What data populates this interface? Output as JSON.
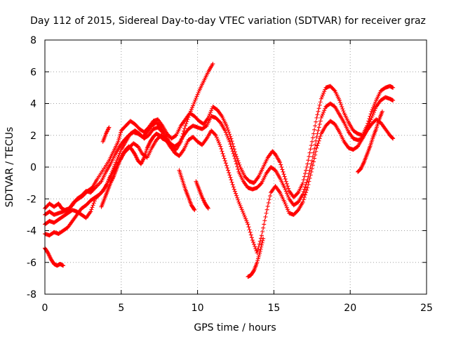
{
  "chart_data": {
    "type": "scatter",
    "title": "Day 112 of 2015, Sidereal Day-to-day VTEC variation (SDTVAR) for receiver graz",
    "xlabel": "GPS time / hours",
    "ylabel": "SDTVAR / TECUs",
    "xlim": [
      0,
      25
    ],
    "ylim": [
      -8,
      8
    ],
    "xticks": [
      "0",
      "5",
      "10",
      "15",
      "20",
      "25"
    ],
    "yticks": [
      "-8",
      "-6",
      "-4",
      "-2",
      "0",
      "2",
      "4",
      "6",
      "8"
    ],
    "grid": true,
    "marker": "+",
    "color": "#ff0000",
    "series": [
      {
        "x": [
          0.0,
          0.3,
          0.6,
          0.9,
          1.1,
          1.3,
          1.6,
          1.9,
          2.2,
          2.5,
          2.8,
          3.1,
          3.4,
          3.8,
          4.2,
          4.5,
          4.8,
          5.0,
          5.3,
          5.6,
          5.9,
          6.2,
          6.5,
          6.8,
          7.1,
          7.4,
          7.7,
          8.0,
          8.3,
          8.6,
          8.9,
          9.2,
          9.5,
          9.8,
          10.1,
          10.4,
          10.7,
          11.0,
          11.3,
          11.6,
          11.9,
          12.2,
          12.5,
          12.8,
          13.1,
          13.4,
          13.7,
          14.0,
          14.3,
          14.6,
          14.9,
          15.1,
          15.4,
          15.7,
          16.0,
          16.3,
          16.6,
          16.9,
          17.2,
          17.5,
          17.8,
          18.1,
          18.4,
          18.7,
          19.0,
          19.3,
          19.6,
          19.9,
          20.2,
          20.5,
          20.8,
          21.1,
          21.4,
          21.7,
          22.0,
          22.3,
          22.6,
          22.8
        ],
        "y": [
          -2.6,
          -2.3,
          -2.5,
          -2.3,
          -2.6,
          -2.7,
          -2.6,
          -2.2,
          -2.0,
          -1.8,
          -1.5,
          -1.3,
          -0.8,
          -0.2,
          0.4,
          1.0,
          1.6,
          2.3,
          2.6,
          2.9,
          2.7,
          2.4,
          2.2,
          2.5,
          2.9,
          3.0,
          2.6,
          2.1,
          1.8,
          2.0,
          2.6,
          3.0,
          3.4,
          3.2,
          2.9,
          2.7,
          3.1,
          3.8,
          3.6,
          3.2,
          2.6,
          1.8,
          0.8,
          0.0,
          -0.6,
          -0.9,
          -1.0,
          -0.6,
          0.0,
          0.6,
          1.0,
          0.8,
          0.3,
          -0.6,
          -1.5,
          -1.9,
          -1.6,
          -1.0,
          0.2,
          1.6,
          3.1,
          4.3,
          5.0,
          5.1,
          4.8,
          4.2,
          3.4,
          2.8,
          2.3,
          2.1,
          2.0,
          2.6,
          3.5,
          4.2,
          4.8,
          5.0,
          5.1,
          5.0
        ]
      },
      {
        "x": [
          0.0,
          0.3,
          0.6,
          0.9,
          1.2,
          1.5,
          1.8,
          2.1,
          2.4,
          2.7,
          3.0,
          3.3,
          3.7,
          4.0,
          4.3,
          4.6,
          4.9,
          5.2,
          5.5,
          5.8,
          6.1,
          6.4,
          6.7,
          7.0,
          7.3,
          7.6,
          7.9,
          8.2,
          8.5,
          8.8,
          9.1,
          9.4,
          9.7,
          10.0,
          10.3,
          10.6,
          10.9,
          11.2,
          11.5,
          11.8,
          12.1,
          12.4,
          12.7,
          13.0,
          13.3,
          13.6,
          13.9,
          14.2,
          14.5,
          14.8,
          15.1,
          15.4,
          15.7,
          16.0,
          16.3,
          16.6,
          16.9,
          17.2,
          17.5,
          17.8,
          18.1,
          18.4,
          18.7,
          19.0,
          19.3,
          19.6,
          19.9,
          20.2,
          20.5,
          20.8,
          21.1,
          21.4,
          21.7,
          22.0,
          22.3,
          22.6,
          22.8
        ],
        "y": [
          -3.0,
          -2.8,
          -3.0,
          -2.9,
          -2.8,
          -2.7,
          -2.4,
          -2.0,
          -1.8,
          -1.5,
          -1.6,
          -1.3,
          -0.9,
          -0.3,
          0.2,
          0.8,
          1.3,
          1.7,
          2.0,
          2.2,
          2.1,
          1.9,
          2.2,
          2.6,
          2.8,
          2.5,
          2.0,
          1.5,
          1.3,
          1.5,
          2.0,
          2.4,
          2.6,
          2.5,
          2.4,
          2.6,
          3.2,
          3.1,
          2.8,
          2.3,
          1.6,
          0.7,
          -0.3,
          -0.9,
          -1.3,
          -1.4,
          -1.3,
          -1.0,
          -0.4,
          0.0,
          -0.2,
          -0.7,
          -1.3,
          -2.0,
          -2.4,
          -2.2,
          -1.7,
          -0.8,
          0.4,
          1.9,
          3.1,
          3.8,
          4.0,
          3.8,
          3.3,
          2.8,
          2.2,
          1.8,
          1.7,
          1.8,
          2.4,
          3.1,
          3.8,
          4.2,
          4.4,
          4.3,
          4.2
        ]
      },
      {
        "x": [
          0.0,
          0.3,
          0.6,
          0.9,
          1.2,
          1.5,
          1.8,
          2.1,
          2.4,
          2.7,
          3.0,
          3.3,
          3.7,
          4.0,
          4.3,
          4.6,
          4.9,
          5.2,
          5.5,
          5.8,
          6.1,
          6.4,
          6.7,
          7.0,
          7.3,
          7.6,
          7.9,
          8.2,
          8.5,
          8.8,
          9.1,
          9.4,
          9.7,
          10.0,
          10.3,
          10.6,
          10.9,
          11.2,
          11.5,
          11.8,
          12.1,
          12.4,
          12.7,
          13.0,
          13.3,
          13.6,
          13.9,
          14.2,
          14.5,
          14.8,
          15.1,
          15.4,
          15.7,
          16.0,
          16.3,
          16.6,
          16.9,
          17.2,
          17.5,
          17.8,
          18.1,
          18.4,
          18.7,
          19.0,
          19.3,
          19.6,
          19.9,
          20.2,
          20.5,
          20.8,
          21.1,
          21.4,
          21.7,
          22.0,
          22.3,
          22.6,
          22.8
        ],
        "y": [
          -3.6,
          -3.4,
          -3.5,
          -3.3,
          -3.1,
          -2.9,
          -2.7,
          -2.8,
          -3.0,
          -3.2,
          -2.8,
          -2.0,
          -1.6,
          -1.2,
          -0.6,
          -0.1,
          0.4,
          0.9,
          1.2,
          1.5,
          1.3,
          0.8,
          0.6,
          1.2,
          1.7,
          2.0,
          1.8,
          1.3,
          0.9,
          0.7,
          1.1,
          1.7,
          1.9,
          1.6,
          1.4,
          1.8,
          2.3,
          2.0,
          1.3,
          0.4,
          -0.5,
          -1.4,
          -2.2,
          -2.9,
          -3.6,
          -4.6,
          -5.4,
          -4.3,
          -2.9,
          -1.6,
          -1.2,
          -1.6,
          -2.2,
          -2.9,
          -3.0,
          -2.7,
          -2.2,
          -1.3,
          -0.1,
          1.2,
          2.1,
          2.6,
          2.9,
          2.7,
          2.2,
          1.6,
          1.2,
          1.1,
          1.3,
          1.8,
          2.3,
          2.7,
          3.0,
          2.8,
          2.4,
          2.0,
          1.8
        ]
      },
      {
        "x": [
          0.0,
          0.3,
          0.6,
          0.9,
          1.2,
          1.5,
          1.8,
          2.1,
          2.4,
          2.7,
          3.0,
          3.3,
          3.6,
          3.8,
          4.1,
          4.4,
          4.7,
          5.0,
          5.3,
          5.6,
          5.9,
          6.2,
          6.5,
          6.8,
          7.1,
          7.4,
          7.7,
          8.0,
          8.3,
          8.6,
          8.9,
          9.2,
          9.5,
          9.8,
          10.1,
          10.4,
          10.7,
          11.0
        ],
        "y": [
          -4.2,
          -4.3,
          -4.1,
          -4.2,
          -4.0,
          -3.8,
          -3.4,
          -3.0,
          -2.6,
          -2.4,
          -2.1,
          -1.9,
          -1.7,
          -1.5,
          -1.0,
          -0.3,
          0.4,
          1.1,
          1.6,
          2.1,
          2.3,
          2.1,
          1.8,
          2.0,
          2.4,
          2.5,
          2.2,
          1.6,
          1.2,
          1.1,
          1.6,
          2.6,
          3.4,
          4.1,
          4.8,
          5.4,
          6.0,
          6.5
        ]
      },
      {
        "x": [
          0.0,
          0.2,
          0.4,
          0.6,
          0.8,
          1.0,
          1.2
        ],
        "y": [
          -5.1,
          -5.4,
          -5.8,
          -6.1,
          -6.2,
          -6.1,
          -6.2
        ]
      },
      {
        "x": [
          3.7,
          3.9,
          4.1,
          4.3,
          4.5,
          4.7,
          4.9,
          5.1,
          5.3,
          5.5,
          5.7,
          5.9,
          6.1,
          6.3,
          6.5,
          6.7,
          6.9,
          7.1,
          7.3,
          7.5,
          7.7,
          7.9,
          8.1
        ],
        "y": [
          -2.5,
          -2.0,
          -1.5,
          -1.0,
          -0.6,
          -0.1,
          0.4,
          0.8,
          1.1,
          1.3,
          1.1,
          0.8,
          0.4,
          0.2,
          0.6,
          1.2,
          1.6,
          1.9,
          2.1,
          2.0,
          1.8,
          1.7,
          1.6
        ]
      },
      {
        "x": [
          3.8,
          4.0,
          4.2
        ],
        "y": [
          1.6,
          2.1,
          2.5
        ]
      },
      {
        "x": [
          8.8,
          9.0,
          9.2,
          9.4,
          9.6,
          9.8
        ],
        "y": [
          -0.2,
          -0.8,
          -1.4,
          -1.9,
          -2.4,
          -2.7
        ]
      },
      {
        "x": [
          9.9,
          10.1,
          10.3,
          10.5,
          10.7
        ],
        "y": [
          -0.9,
          -1.4,
          -1.9,
          -2.3,
          -2.6
        ]
      },
      {
        "x": [
          13.3,
          13.5,
          13.7,
          13.9,
          14.1,
          14.3
        ],
        "y": [
          -6.9,
          -6.8,
          -6.5,
          -6.0,
          -5.3,
          -4.5
        ]
      },
      {
        "x": [
          20.5,
          20.7,
          20.9,
          21.1,
          21.3,
          21.5,
          21.7,
          21.9,
          22.1
        ],
        "y": [
          -0.3,
          -0.1,
          0.3,
          0.8,
          1.3,
          1.9,
          2.4,
          3.0,
          3.5
        ]
      }
    ]
  }
}
